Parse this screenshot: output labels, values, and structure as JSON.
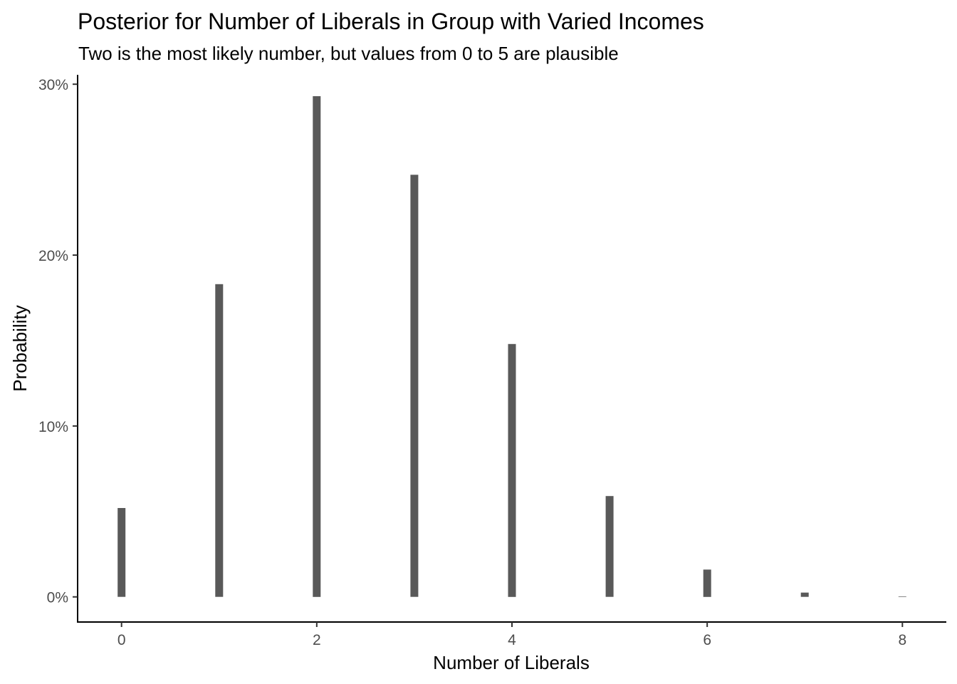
{
  "chart_data": {
    "type": "bar",
    "title": "Posterior for Number of Liberals in Group with Varied Incomes",
    "subtitle": "Two is the most likely number, but values from 0 to 5 are plausible",
    "xlabel": "Number of Liberals",
    "ylabel": "Probability",
    "x": [
      0,
      1,
      2,
      3,
      4,
      5,
      6,
      7,
      8
    ],
    "values": [
      0.052,
      0.183,
      0.293,
      0.247,
      0.148,
      0.059,
      0.016,
      0.0025,
      0.0003
    ],
    "xlim": [
      -0.45,
      8.45
    ],
    "ylim": [
      -0.0147,
      0.3055
    ],
    "x_ticks": [
      0,
      2,
      4,
      6,
      8
    ],
    "x_tick_labels": [
      "0",
      "2",
      "4",
      "6",
      "8"
    ],
    "y_ticks": [
      0,
      0.1,
      0.2,
      0.3
    ],
    "y_tick_labels": [
      "0%",
      "10%",
      "20%",
      "30%"
    ],
    "bar_color": "#595959",
    "grid": false,
    "legend": "none"
  }
}
